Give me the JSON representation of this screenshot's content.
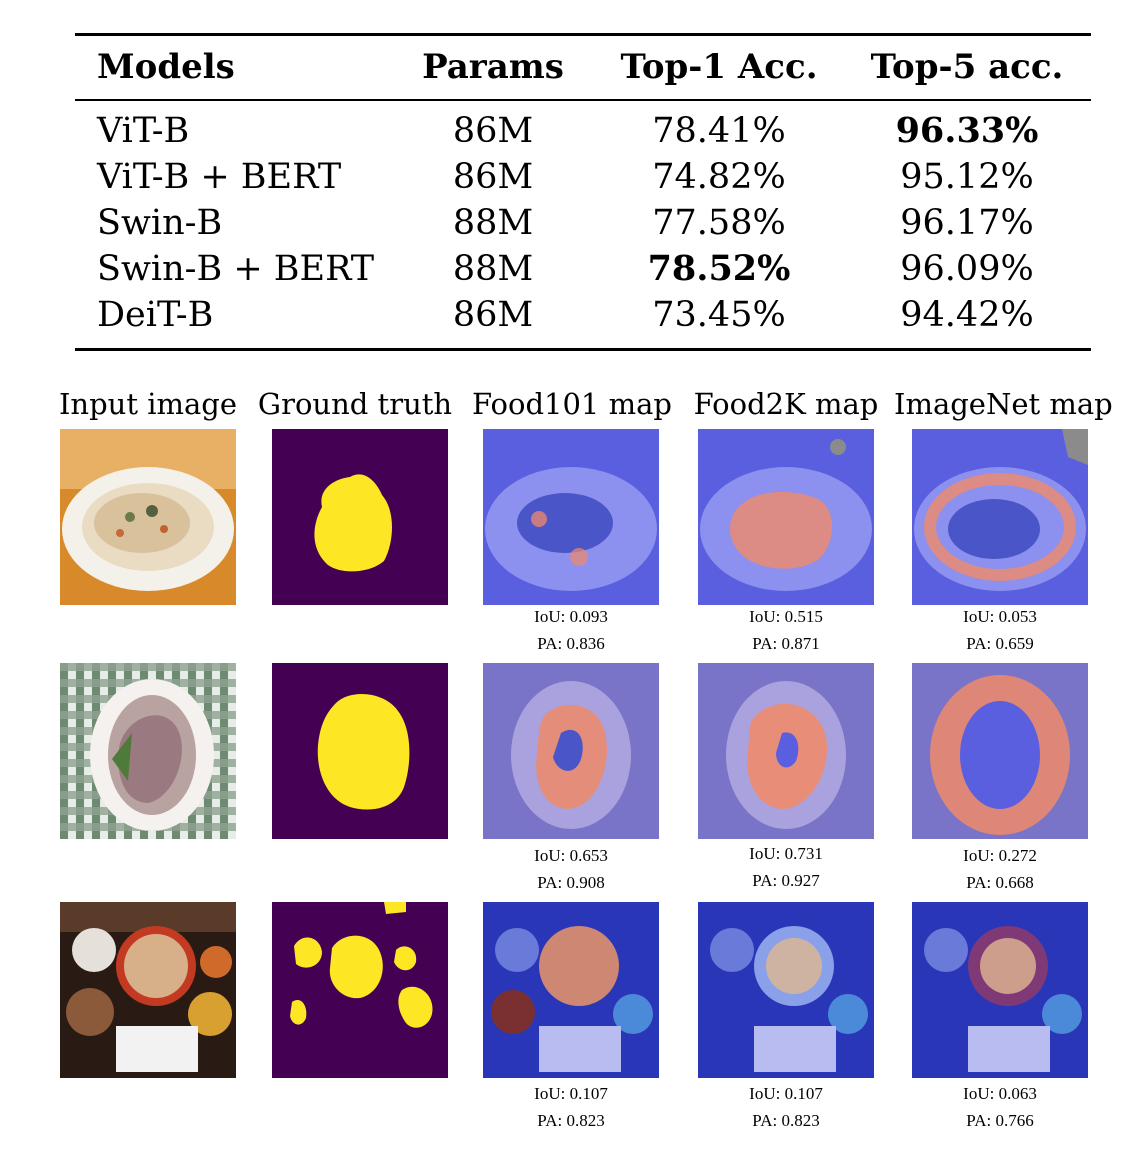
{
  "table": {
    "headers": [
      "Models",
      "Params",
      "Top-1 Acc.",
      "Top-5 acc."
    ],
    "rows": [
      {
        "model": "ViT-B",
        "params": "86M",
        "top1": "78.41%",
        "top5": "96.33%",
        "top1_bold": false,
        "top5_bold": true
      },
      {
        "model": "ViT-B + BERT",
        "params": "86M",
        "top1": "74.82%",
        "top5": "95.12%",
        "top1_bold": false,
        "top5_bold": false
      },
      {
        "model": "Swin-B",
        "params": "88M",
        "top1": "77.58%",
        "top5": "96.17%",
        "top1_bold": false,
        "top5_bold": false
      },
      {
        "model": "Swin-B + BERT",
        "params": "88M",
        "top1": "78.52%",
        "top5": "96.09%",
        "top1_bold": true,
        "top5_bold": false
      },
      {
        "model": "DeiT-B",
        "params": "86M",
        "top1": "73.45%",
        "top5": "94.42%",
        "top1_bold": false,
        "top5_bold": false
      }
    ]
  },
  "figure": {
    "column_titles": [
      "Input image",
      "Ground truth",
      "Food101 map",
      "Food2K map",
      "ImageNet map"
    ],
    "rows": [
      {
        "metrics": [
          {
            "iou": "IoU: 0.093",
            "pa": "PA: 0.836"
          },
          {
            "iou": "IoU: 0.515",
            "pa": "PA: 0.871"
          },
          {
            "iou": "IoU: 0.053",
            "pa": "PA: 0.659"
          }
        ]
      },
      {
        "metrics": [
          {
            "iou": "IoU: 0.653",
            "pa": "PA: 0.908"
          },
          {
            "iou": "IoU: 0.731",
            "pa": "PA: 0.927"
          },
          {
            "iou": "IoU: 0.272",
            "pa": "PA: 0.668"
          }
        ]
      },
      {
        "metrics": [
          {
            "iou": "IoU: 0.107",
            "pa": "PA: 0.823"
          },
          {
            "iou": "IoU: 0.107",
            "pa": "PA: 0.823"
          },
          {
            "iou": "IoU: 0.063",
            "pa": "PA: 0.766"
          }
        ]
      }
    ],
    "colors": {
      "mask_background": "#440154",
      "mask_foreground": "#fde725",
      "map_cold": "#5a5fe0",
      "map_hot": "#f08a6a"
    }
  }
}
